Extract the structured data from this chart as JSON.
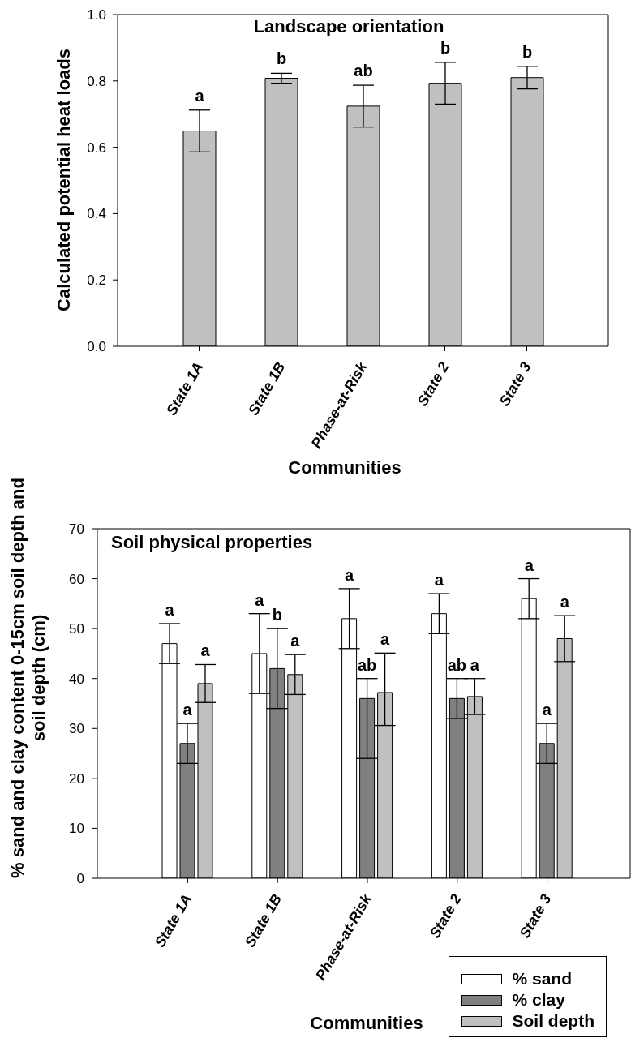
{
  "chart_data": [
    {
      "type": "bar",
      "title": "Landscape orientation",
      "xlabel": "Communities",
      "ylabel": "Calculated potential heat loads",
      "categories": [
        "State 1A",
        "State 1B",
        "Phase-at-Risk",
        "State 2",
        "State 3"
      ],
      "values": [
        0.649,
        0.808,
        0.724,
        0.793,
        0.81
      ],
      "color": "#c0c0c0",
      "errors": [
        0.063,
        0.015,
        0.063,
        0.063,
        0.034
      ],
      "value_labels": [
        "a",
        "b",
        "ab",
        "b",
        "b"
      ],
      "ylim": [
        0,
        1
      ],
      "yticks": [
        {
          "value": 0,
          "label": "0.0"
        },
        0.2,
        0.4,
        0.6,
        0.8,
        {
          "value": 1,
          "label": "1.0"
        }
      ]
    },
    {
      "type": "bar",
      "title": "Soil physical properties",
      "xlabel": "Communities",
      "ylabel": "% sand and clay content 0-15cm soil depth and soil depth (cm)",
      "categories": [
        "State 1A",
        "State 1B",
        "Phase-at-Risk",
        "State 2",
        "State 3"
      ],
      "series": [
        {
          "name": "% sand",
          "color": "#ffffff",
          "values": [
            47,
            45,
            52,
            53,
            56
          ],
          "errors": [
            4,
            8,
            6,
            4,
            4
          ],
          "value_labels": [
            "a",
            "a",
            "a",
            "a",
            "a"
          ]
        },
        {
          "name": "% clay",
          "color": "#808080",
          "values": [
            27,
            42,
            36,
            36,
            27
          ],
          "errors": [
            4,
            8,
            [
              24,
              40
            ],
            4,
            4
          ],
          "value_labels": [
            "a",
            "b",
            "ab",
            "ab",
            "a"
          ]
        },
        {
          "name": "Soil depth",
          "color": "#c0c0c0",
          "values": [
            39,
            40.8,
            37.2,
            36.4,
            48
          ],
          "errors": [
            3.8,
            4,
            [
              30.6,
              45.1
            ],
            3.6,
            4.6
          ],
          "value_labels": [
            "a",
            "a",
            "a",
            "a",
            "a"
          ]
        }
      ],
      "ylim": [
        0,
        70
      ],
      "yticks": [
        0,
        10,
        20,
        30,
        40,
        50,
        60,
        70
      ],
      "legend": "bottom right"
    }
  ]
}
